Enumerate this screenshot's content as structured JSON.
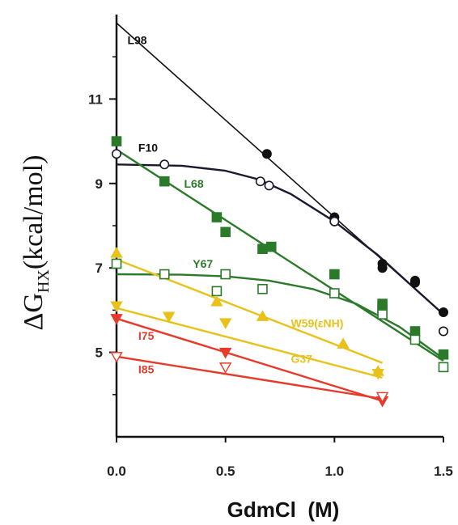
{
  "chart_data": {
    "type": "scatter",
    "xlabel": "GdmCl  (M)",
    "ylabel": {
      "main": "ΔG",
      "sub": "HX",
      "unit": "(kcal/mol)"
    },
    "xlim": [
      0,
      1.5
    ],
    "ylim": [
      3,
      13
    ],
    "x_ticks": [
      0.0,
      0.5,
      1.0,
      1.5
    ],
    "x_tick_labels": [
      "0.0",
      "0.5",
      "1.0",
      "1.5"
    ],
    "y_ticks": [
      5,
      7,
      9,
      11
    ],
    "y_tick_labels": [
      "5",
      "7",
      "9",
      "11"
    ],
    "series": [
      {
        "name": "L98",
        "color": "#111111",
        "marker": "circle",
        "points": [
          {
            "x": 0.69,
            "y": 9.7,
            "filled": true
          },
          {
            "x": 1.0,
            "y": 8.2,
            "filled": true
          },
          {
            "x": 1.0,
            "y": 8.1,
            "filled": false
          },
          {
            "x": 1.22,
            "y": 7.1,
            "filled": true
          },
          {
            "x": 1.22,
            "y": 7.0,
            "filled": true
          },
          {
            "x": 1.37,
            "y": 6.7,
            "filled": true
          },
          {
            "x": 1.37,
            "y": 6.65,
            "filled": true
          },
          {
            "x": 1.5,
            "y": 5.95,
            "filled": true
          },
          {
            "x": 1.5,
            "y": 5.5,
            "filled": false
          }
        ],
        "fit": [
          [
            0.0,
            12.8
          ],
          [
            1.5,
            5.9
          ]
        ]
      },
      {
        "name": "F10",
        "color": "#1a1a2e",
        "marker": "circle",
        "points": [
          {
            "x": 0.0,
            "y": 9.7,
            "filled": false
          },
          {
            "x": 0.22,
            "y": 9.45,
            "filled": false
          },
          {
            "x": 0.66,
            "y": 9.05,
            "filled": false
          },
          {
            "x": 0.7,
            "y": 8.95,
            "filled": false
          },
          {
            "x": 1.0,
            "y": 8.1,
            "filled": false
          }
        ],
        "fit": [
          [
            0.0,
            9.45
          ],
          [
            0.3,
            9.42
          ],
          [
            0.5,
            9.3
          ],
          [
            0.65,
            9.1
          ],
          [
            0.8,
            8.75
          ],
          [
            1.0,
            8.1
          ],
          [
            1.2,
            7.3
          ],
          [
            1.35,
            6.6
          ],
          [
            1.5,
            5.9
          ]
        ]
      },
      {
        "name": "L68",
        "color": "#2a7a2a",
        "marker": "square",
        "points": [
          {
            "x": 0.0,
            "y": 10.0,
            "filled": true
          },
          {
            "x": 0.22,
            "y": 9.05,
            "filled": true
          },
          {
            "x": 0.46,
            "y": 8.2,
            "filled": true
          },
          {
            "x": 0.5,
            "y": 7.85,
            "filled": true
          },
          {
            "x": 0.67,
            "y": 7.45,
            "filled": true
          },
          {
            "x": 0.71,
            "y": 7.5,
            "filled": true
          },
          {
            "x": 1.0,
            "y": 6.85,
            "filled": true
          },
          {
            "x": 1.22,
            "y": 6.15,
            "filled": true
          },
          {
            "x": 1.22,
            "y": 6.0,
            "filled": true
          },
          {
            "x": 1.37,
            "y": 5.5,
            "filled": true
          },
          {
            "x": 1.5,
            "y": 4.95,
            "filled": true
          }
        ],
        "fit": [
          [
            0.0,
            9.8
          ],
          [
            1.5,
            4.8
          ]
        ]
      },
      {
        "name": "Y67",
        "color": "#2a7a2a",
        "marker": "square",
        "points": [
          {
            "x": 0.0,
            "y": 7.1,
            "filled": false
          },
          {
            "x": 0.22,
            "y": 6.85,
            "filled": false
          },
          {
            "x": 0.46,
            "y": 6.45,
            "filled": false
          },
          {
            "x": 0.5,
            "y": 6.85,
            "filled": false
          },
          {
            "x": 0.67,
            "y": 6.5,
            "filled": false
          },
          {
            "x": 1.0,
            "y": 6.4,
            "filled": false
          },
          {
            "x": 1.22,
            "y": 5.9,
            "filled": false
          },
          {
            "x": 1.37,
            "y": 5.3,
            "filled": false
          },
          {
            "x": 1.5,
            "y": 4.65,
            "filled": false
          }
        ],
        "fit": [
          [
            0.0,
            6.85
          ],
          [
            0.3,
            6.84
          ],
          [
            0.5,
            6.8
          ],
          [
            0.7,
            6.7
          ],
          [
            0.9,
            6.5
          ],
          [
            1.1,
            6.15
          ],
          [
            1.3,
            5.6
          ],
          [
            1.5,
            4.85
          ]
        ]
      },
      {
        "name": "W59(εNH)",
        "color": "#e8c21a",
        "marker": "triangle-up",
        "points": [
          {
            "x": 0.0,
            "y": 7.35,
            "filled": true
          },
          {
            "x": 0.46,
            "y": 6.2,
            "filled": true
          },
          {
            "x": 0.67,
            "y": 5.85,
            "filled": true
          },
          {
            "x": 1.04,
            "y": 5.2,
            "filled": true
          },
          {
            "x": 1.2,
            "y": 4.55,
            "filled": true
          }
        ],
        "fit": [
          [
            0.0,
            7.2
          ],
          [
            1.22,
            4.75
          ]
        ]
      },
      {
        "name": "G37",
        "color": "#e8c21a",
        "marker": "triangle-down",
        "points": [
          {
            "x": 0.0,
            "y": 6.1,
            "filled": true
          },
          {
            "x": 0.24,
            "y": 5.85,
            "filled": true
          },
          {
            "x": 0.5,
            "y": 5.7,
            "filled": true
          },
          {
            "x": 1.2,
            "y": 4.5,
            "filled": true
          }
        ],
        "fit": [
          [
            0.0,
            6.05
          ],
          [
            1.22,
            4.4
          ]
        ]
      },
      {
        "name": "I75",
        "color": "#e63a2a",
        "marker": "triangle-down",
        "points": [
          {
            "x": 0.0,
            "y": 5.8,
            "filled": true
          },
          {
            "x": 0.5,
            "y": 5.0,
            "filled": true
          },
          {
            "x": 1.22,
            "y": 3.85,
            "filled": true
          }
        ],
        "fit": [
          [
            0.0,
            5.8
          ],
          [
            1.22,
            3.85
          ]
        ]
      },
      {
        "name": "I85",
        "color": "#e63a2a",
        "marker": "triangle-down",
        "points": [
          {
            "x": 0.0,
            "y": 4.9,
            "filled": false
          },
          {
            "x": 0.5,
            "y": 4.65,
            "filled": false
          },
          {
            "x": 1.22,
            "y": 3.95,
            "filled": false
          }
        ],
        "fit": [
          [
            0.0,
            4.9
          ],
          [
            1.22,
            3.9
          ]
        ]
      }
    ],
    "annotations": [
      {
        "text": "L98",
        "color": "#111111",
        "x": 0.05,
        "y": 12.3
      },
      {
        "text": "F10",
        "color": "#111111",
        "x": 0.1,
        "y": 9.75
      },
      {
        "text": "L68",
        "color": "#2a7a2a",
        "x": 0.31,
        "y": 8.9
      },
      {
        "text": "Y67",
        "color": "#2a7a2a",
        "x": 0.35,
        "y": 7.0
      },
      {
        "text": "W59(εNH)",
        "color": "#e8c21a",
        "x": 0.8,
        "y": 5.6
      },
      {
        "text": "G37",
        "color": "#e8c21a",
        "x": 0.8,
        "y": 4.75
      },
      {
        "text": "I75",
        "color": "#e63a2a",
        "x": 0.1,
        "y": 5.3
      },
      {
        "text": "I85",
        "color": "#e63a2a",
        "x": 0.1,
        "y": 4.5
      }
    ]
  }
}
